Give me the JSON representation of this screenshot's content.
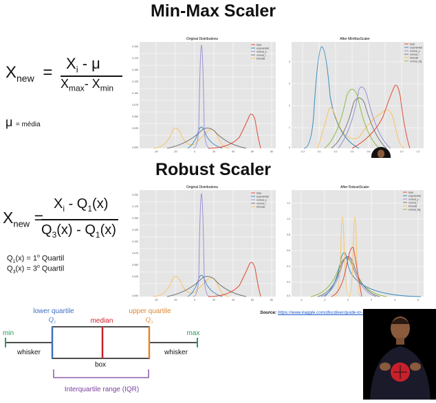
{
  "titles": {
    "minmax": "Min-Max Scaler",
    "robust": "Robust Scaler"
  },
  "minmax_formula": {
    "lhs": "X",
    "lhs_sub": "new",
    "num_x": "X",
    "num_sub": "i",
    "num_rest": " - μ",
    "den_x1": "X",
    "den_sub1": "max",
    "den_mid": "- X",
    "den_sub2": "min",
    "mu_symbol": "μ",
    "mu_note": "= média"
  },
  "robust_formula": {
    "lhs": "X",
    "lhs_sub": "new",
    "num": "X",
    "num_sub": "i",
    "num_mid": " - Q",
    "num_q": "1",
    "num_end": "(x)",
    "den_a": "Q",
    "den_a_sub": "3",
    "den_b": "(x) - Q",
    "den_b_sub": "1",
    "den_c": "(x)",
    "q1_note": "Q",
    "q1_sub": "1",
    "q1_rest": "(x) = 1",
    "q1_sup": "o",
    "q1_end": " Quartil",
    "q3_note": "Q",
    "q3_sub": "3",
    "q3_rest": "(x) = 3",
    "q3_sup": "o",
    "q3_end": " Quartil"
  },
  "plots": {
    "mm_original": {
      "title": "Original Distributions",
      "legend": [
        "beta",
        "exponential",
        "normal_p",
        "normal_l",
        "bimodal"
      ],
      "xticks": [
        "-40",
        "-20",
        "0",
        "20",
        "40",
        "60",
        "80"
      ],
      "yticks": [
        "0.200",
        "0.175",
        "0.150",
        "0.125",
        "0.100",
        "0.075",
        "0.050",
        "0.025",
        "0.000"
      ]
    },
    "mm_after": {
      "title": "After MinMaxScaler",
      "legend": [
        "beta",
        "exponential",
        "normal_p",
        "normal_l",
        "bimodal",
        "normal_big"
      ],
      "xticks": [
        "-0.2",
        "0.0",
        "0.2",
        "0.4",
        "0.6",
        "0.8",
        "1.0",
        "1.2"
      ],
      "yticks": [
        "4",
        "3",
        "2",
        "1",
        "0"
      ]
    },
    "rb_original": {
      "title": "Original Distributions",
      "legend": [
        "beta",
        "exponential",
        "normal_p",
        "normal_l",
        "bimodal"
      ],
      "xticks": [
        "-40",
        "-20",
        "0",
        "20",
        "40",
        "60",
        "80"
      ],
      "yticks": [
        "0.200",
        "0.175",
        "0.150",
        "0.125",
        "0.100",
        "0.075",
        "0.050",
        "0.025",
        "0.000"
      ]
    },
    "rb_after": {
      "title": "After RobustScaler",
      "legend": [
        "beta",
        "exponential",
        "normal_p",
        "normal_l",
        "bimodal",
        "normal_big"
      ],
      "xticks": [
        "-4",
        "-2",
        "0",
        "2",
        "4",
        "6"
      ],
      "yticks": [
        "1.2",
        "1.0",
        "0.8",
        "0.6",
        "0.4",
        "0.2",
        "0.0"
      ]
    }
  },
  "colors": {
    "beta": "#e24a33",
    "exponential": "#348abd",
    "normal_p": "#988ed5",
    "normal_l": "#777777",
    "bimodal": "#fbc15e",
    "normal_big": "#8eba42",
    "plot_bg": "#e5e5e5"
  },
  "source": {
    "label": "Source:",
    "url": "https://www.kaggle.com/discdiver/guide-to-scaling-standardizing"
  },
  "boxplot": {
    "lower_quartile": "lower quartile",
    "upper_quartile": "upper quartile",
    "q1": "Q₁",
    "q3": "Q₃",
    "median": "median",
    "min": "min",
    "max": "max",
    "whisker_left": "whisker",
    "whisker_right": "whisker",
    "box": "box",
    "iqr": "Interquartile range (IQR)"
  }
}
